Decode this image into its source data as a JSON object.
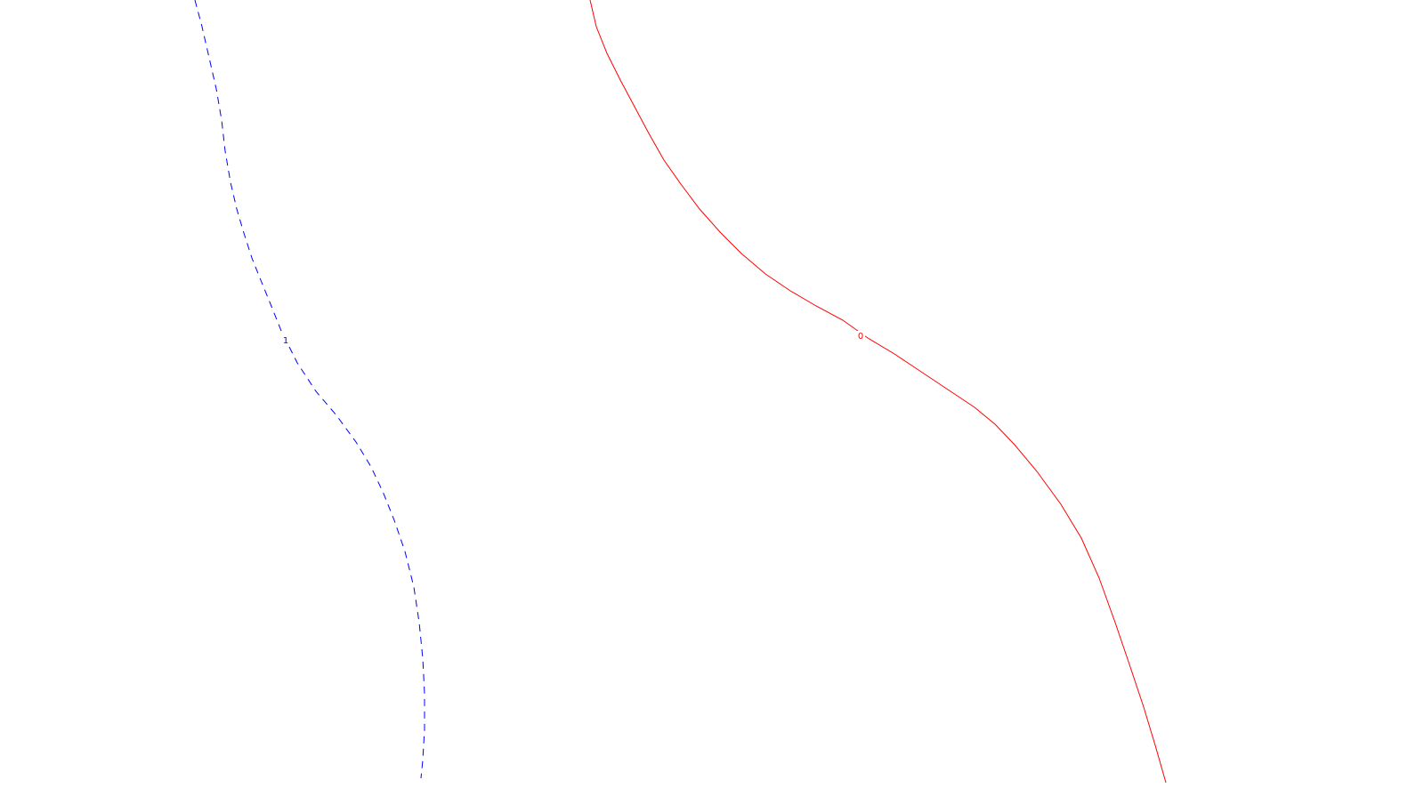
{
  "chart_data": {
    "type": "line",
    "title": "",
    "xlabel": "",
    "ylabel": "",
    "grid": false,
    "legend": "none",
    "series": [
      {
        "label": "1",
        "color": "#0000ff",
        "line_style": "dashed",
        "points": [
          [
            219,
            0
          ],
          [
            227,
            30
          ],
          [
            235,
            65
          ],
          [
            243,
            100
          ],
          [
            249,
            135
          ],
          [
            253,
            170
          ],
          [
            259,
            205
          ],
          [
            266,
            235
          ],
          [
            274,
            262
          ],
          [
            283,
            290
          ],
          [
            293,
            315
          ],
          [
            304,
            342
          ],
          [
            316,
            372
          ],
          [
            334,
            408
          ],
          [
            355,
            440
          ],
          [
            378,
            467
          ],
          [
            400,
            497
          ],
          [
            417,
            525
          ],
          [
            431,
            555
          ],
          [
            443,
            585
          ],
          [
            455,
            620
          ],
          [
            465,
            660
          ],
          [
            471,
            700
          ],
          [
            475,
            740
          ],
          [
            477,
            780
          ],
          [
            477,
            820
          ],
          [
            475,
            855
          ],
          [
            473,
            875
          ]
        ]
      },
      {
        "label": "0",
        "color": "#ff0000",
        "line_style": "solid",
        "points": [
          [
            663,
            0
          ],
          [
            670,
            30
          ],
          [
            682,
            60
          ],
          [
            697,
            90
          ],
          [
            713,
            120
          ],
          [
            729,
            150
          ],
          [
            746,
            180
          ],
          [
            765,
            207
          ],
          [
            786,
            235
          ],
          [
            810,
            262
          ],
          [
            833,
            285
          ],
          [
            860,
            308
          ],
          [
            888,
            327
          ],
          [
            917,
            344
          ],
          [
            947,
            360
          ],
          [
            975,
            380
          ],
          [
            1005,
            398
          ],
          [
            1035,
            418
          ],
          [
            1065,
            438
          ],
          [
            1095,
            458
          ],
          [
            1118,
            477
          ],
          [
            1140,
            500
          ],
          [
            1165,
            530
          ],
          [
            1192,
            567
          ],
          [
            1215,
            605
          ],
          [
            1235,
            650
          ],
          [
            1253,
            700
          ],
          [
            1270,
            750
          ],
          [
            1285,
            795
          ],
          [
            1298,
            838
          ],
          [
            1310,
            880
          ]
        ]
      }
    ],
    "labels": [
      {
        "text": "1",
        "series": "1",
        "color": "#0000ff"
      },
      {
        "text": "0",
        "series": "0",
        "color": "#ff0000"
      }
    ]
  }
}
